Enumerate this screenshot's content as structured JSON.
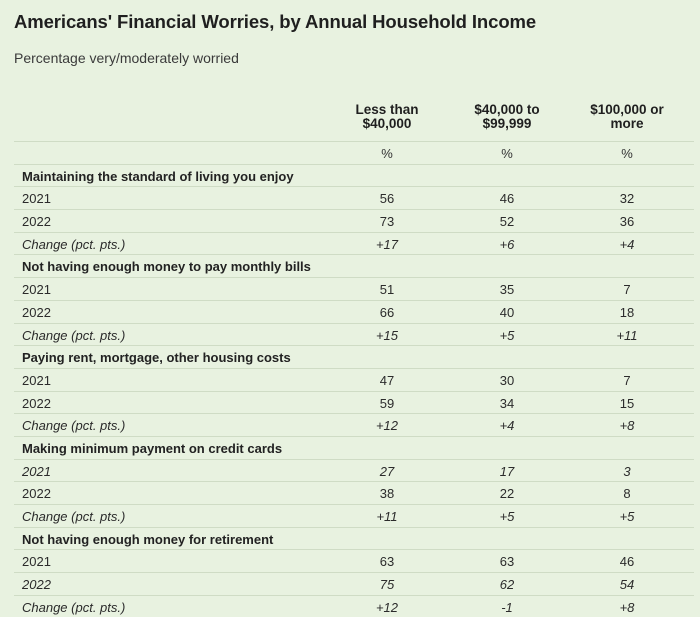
{
  "title": "Americans' Financial Worries, by Annual Household Income",
  "subtitle": "Percentage very/moderately worried",
  "chart_data": {
    "type": "table",
    "title": "Americans' Financial Worries, by Annual Household Income",
    "subtitle": "Percentage very/moderately worried",
    "columns": [
      "Less than\n$40,000",
      "$40,000 to\n$99,999",
      "$100,000 or\nmore"
    ],
    "units": [
      "%",
      "%",
      "%"
    ],
    "sections": [
      {
        "name": "Maintaining the standard of living you enjoy",
        "rows": [
          {
            "label": "2021",
            "values": [
              "56",
              "46",
              "32"
            ]
          },
          {
            "label": "2022",
            "values": [
              "73",
              "52",
              "36"
            ]
          },
          {
            "label": "Change (pct. pts.)",
            "values": [
              "+17",
              "+6",
              "+4"
            ]
          }
        ]
      },
      {
        "name": "Not having enough money to pay monthly bills",
        "rows": [
          {
            "label": "2021",
            "values": [
              "51",
              "35",
              "7"
            ]
          },
          {
            "label": "2022",
            "values": [
              "66",
              "40",
              "18"
            ]
          },
          {
            "label": "Change (pct. pts.)",
            "values": [
              "+15",
              "+5",
              "+11"
            ]
          }
        ]
      },
      {
        "name": "Paying rent, mortgage, other housing costs",
        "rows": [
          {
            "label": "2021",
            "values": [
              "47",
              "30",
              "7"
            ]
          },
          {
            "label": "2022",
            "values": [
              "59",
              "34",
              "15"
            ]
          },
          {
            "label": "Change (pct. pts.)",
            "values": [
              "+12",
              "+4",
              "+8"
            ]
          }
        ]
      },
      {
        "name": "Making minimum payment on credit cards",
        "rows": [
          {
            "label": "2021",
            "values": [
              "27",
              "17",
              "3"
            ],
            "italic": true
          },
          {
            "label": "2022",
            "values": [
              "38",
              "22",
              "8"
            ]
          },
          {
            "label": "Change (pct. pts.)",
            "values": [
              "+11",
              "+5",
              "+5"
            ]
          }
        ]
      },
      {
        "name": "Not having enough money for retirement",
        "rows": [
          {
            "label": "2021",
            "values": [
              "63",
              "63",
              "46"
            ]
          },
          {
            "label": "2022",
            "values": [
              "75",
              "62",
              "54"
            ],
            "italic": true
          },
          {
            "label": "Change (pct. pts.)",
            "values": [
              "+12",
              "-1",
              "+8"
            ]
          }
        ]
      }
    ]
  }
}
